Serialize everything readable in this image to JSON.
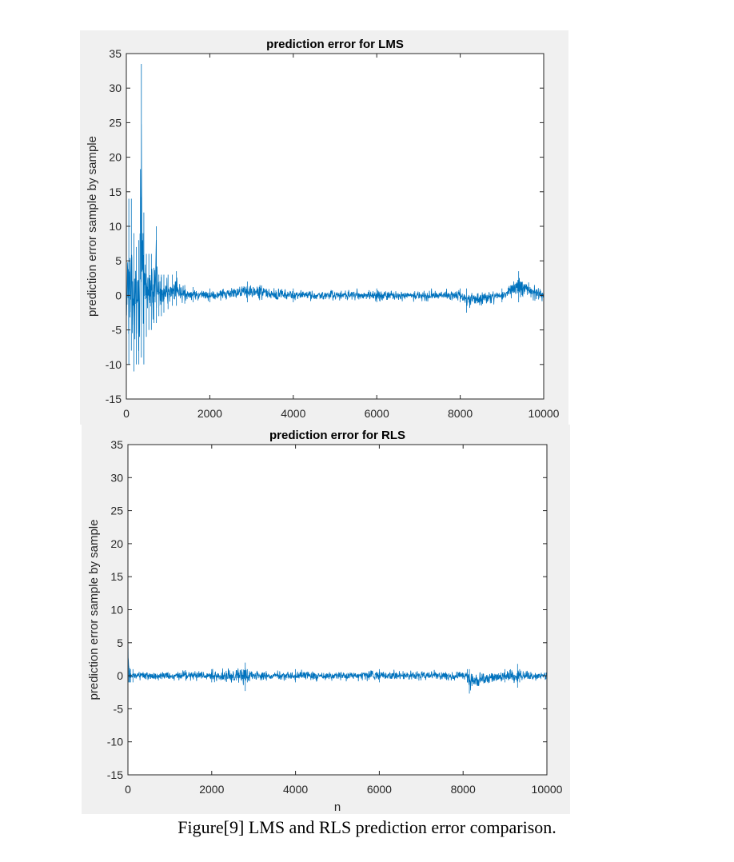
{
  "chart_data": [
    {
      "type": "line",
      "title": "prediction error for LMS",
      "xlabel": "",
      "ylabel": "prediction error sample by sample",
      "xlim": [
        0,
        10000
      ],
      "ylim": [
        -15,
        35
      ],
      "xticks": [
        0,
        2000,
        4000,
        6000,
        8000,
        10000
      ],
      "yticks": [
        -15,
        -10,
        -5,
        0,
        5,
        10,
        15,
        20,
        25,
        30,
        35
      ],
      "grid": false,
      "series_color": "#0072BD",
      "series": [
        {
          "x": [
            0,
            60,
            120,
            180,
            240,
            300,
            360,
            420,
            480,
            540,
            600,
            660,
            720,
            780,
            840,
            900,
            1000,
            1100,
            1200,
            1400,
            1600,
            2000,
            2900,
            4000,
            6000,
            8000,
            8150,
            9000,
            9400,
            10000
          ],
          "max": [
            10,
            14,
            14,
            9,
            7,
            8,
            33.5,
            12,
            6,
            6,
            6,
            4,
            10,
            3,
            3,
            3,
            3,
            3,
            3.5,
            1.5,
            1.2,
            1,
            2,
            1,
            1,
            1,
            1,
            1,
            3.5,
            1
          ],
          "min": [
            -10,
            -10,
            -8,
            -11,
            -10,
            -10,
            -9,
            -10,
            -6,
            -5,
            -5,
            -4,
            -4,
            -3,
            -3,
            -2.5,
            -2,
            -1.5,
            -1.5,
            -1.2,
            -1,
            -1,
            -1,
            -1,
            -1,
            -1,
            -2.5,
            -1,
            -1,
            -1
          ]
        }
      ]
    },
    {
      "type": "line",
      "title": "prediction error for RLS",
      "xlabel": "n",
      "ylabel": "prediction error sample by sample",
      "xlim": [
        0,
        10000
      ],
      "ylim": [
        -15,
        35
      ],
      "xticks": [
        0,
        2000,
        4000,
        6000,
        8000,
        10000
      ],
      "yticks": [
        -15,
        -10,
        -5,
        0,
        5,
        10,
        15,
        20,
        25,
        30,
        35
      ],
      "grid": false,
      "series_color": "#0072BD",
      "series": [
        {
          "x": [
            0,
            20,
            40,
            60,
            120,
            2000,
            2800,
            2850,
            4000,
            6000,
            8100,
            8150,
            9000,
            9300,
            9350,
            10000
          ],
          "max": [
            10,
            1.5,
            1.2,
            1,
            1,
            1,
            2,
            1,
            1,
            1,
            1,
            1,
            1,
            1.8,
            1,
            1
          ],
          "min": [
            -1.5,
            -1,
            -1,
            -1,
            -1,
            -1,
            -2.3,
            -1,
            -1,
            -1,
            -1,
            -2.7,
            -1,
            -1.8,
            -1,
            -1
          ]
        }
      ]
    }
  ],
  "caption": "Figure[9] LMS and RLS prediction error comparison."
}
